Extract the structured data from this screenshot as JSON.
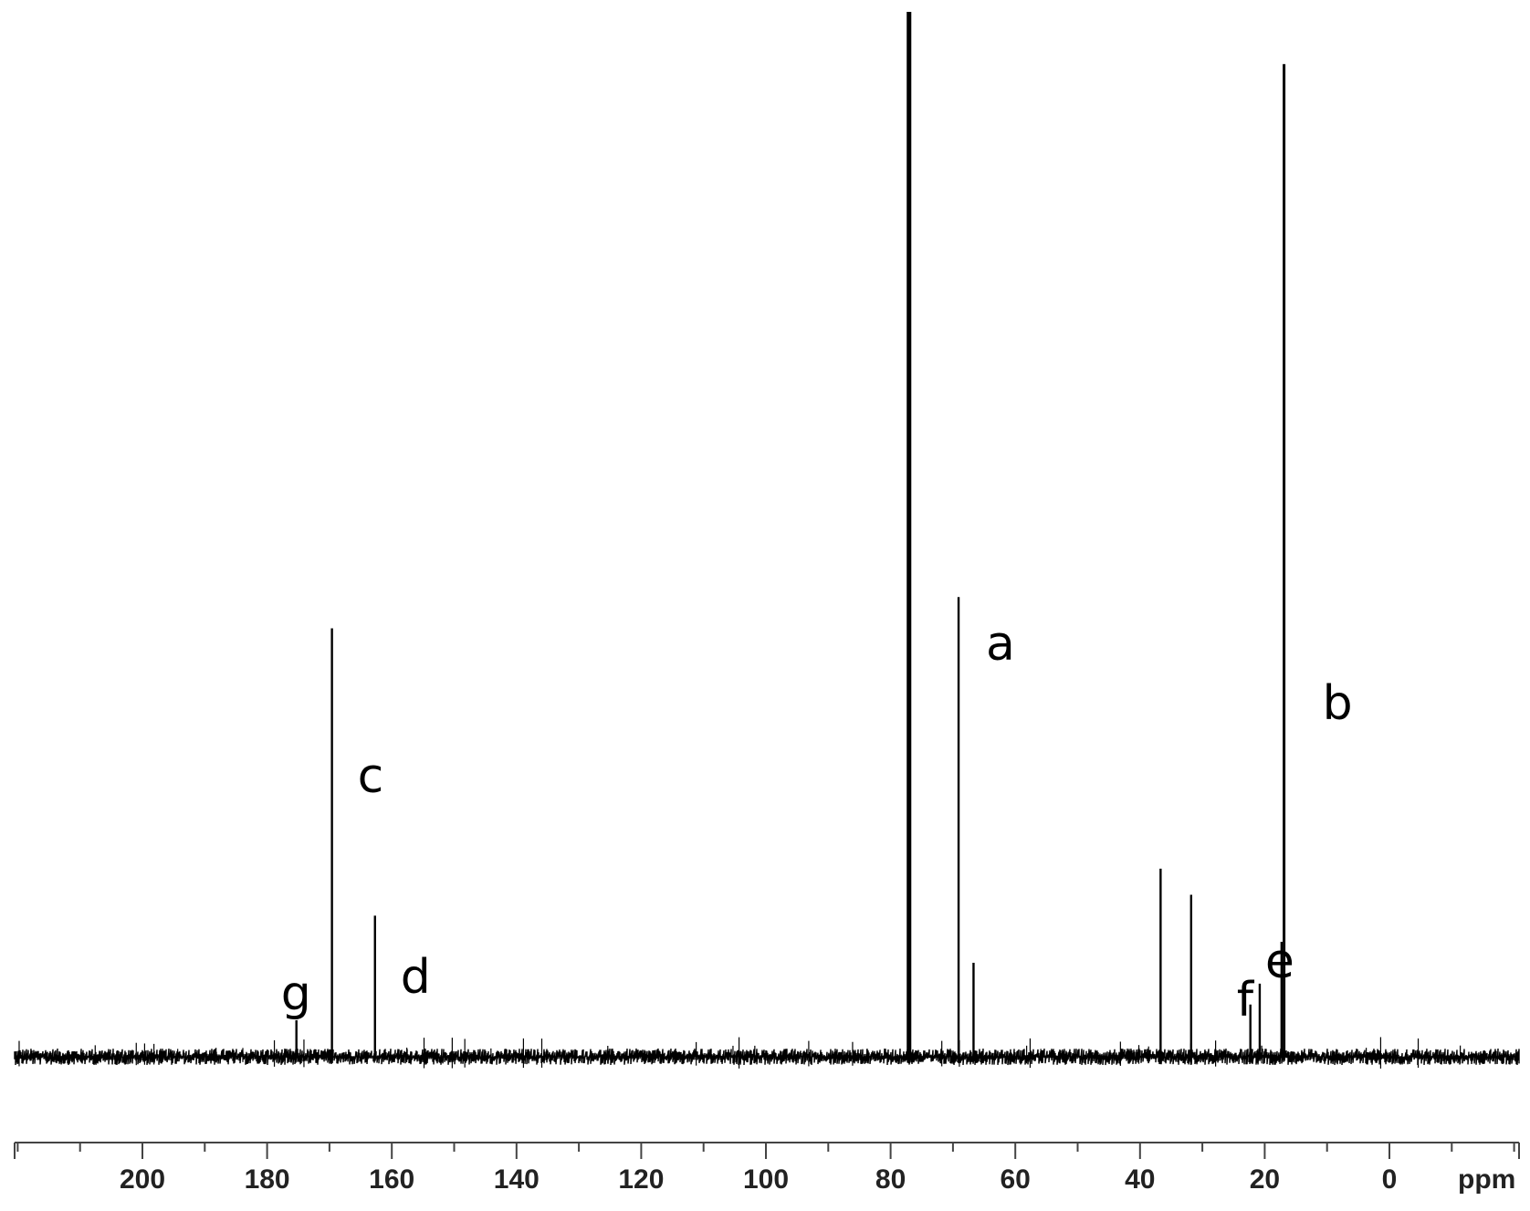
{
  "chart_data": {
    "type": "line",
    "title": "",
    "xlabel": "ppm",
    "ylabel": "",
    "xlim": [
      220,
      -20
    ],
    "x_reversed": true,
    "ylim": [
      0,
      1.0
    ],
    "baseline": 0,
    "grid": false,
    "major_ticks": [
      200,
      180,
      160,
      140,
      120,
      100,
      80,
      60,
      40,
      20,
      0
    ],
    "tick_labels": [
      "200",
      "180",
      "160",
      "140",
      "120",
      "100",
      "80",
      "60",
      "40",
      "20",
      "0"
    ],
    "tick_step_minor": 10,
    "peaks": [
      {
        "x": 77.2,
        "y": 1.0,
        "label": ""
      },
      {
        "x": 76.9,
        "y": 1.0,
        "label": ""
      },
      {
        "x": 16.9,
        "y": 0.95,
        "label": "b"
      },
      {
        "x": 69.1,
        "y": 0.44,
        "label": "a"
      },
      {
        "x": 169.6,
        "y": 0.41,
        "label": "c"
      },
      {
        "x": 162.7,
        "y": 0.135,
        "label": "d"
      },
      {
        "x": 36.7,
        "y": 0.18,
        "label": ""
      },
      {
        "x": 31.8,
        "y": 0.155,
        "label": ""
      },
      {
        "x": 66.7,
        "y": 0.09,
        "label": ""
      },
      {
        "x": 20.8,
        "y": 0.07,
        "label": "e"
      },
      {
        "x": 22.3,
        "y": 0.05,
        "label": "f"
      },
      {
        "x": 175.3,
        "y": 0.035,
        "label": "g"
      },
      {
        "x": 17.3,
        "y": 0.11,
        "label": ""
      }
    ]
  }
}
